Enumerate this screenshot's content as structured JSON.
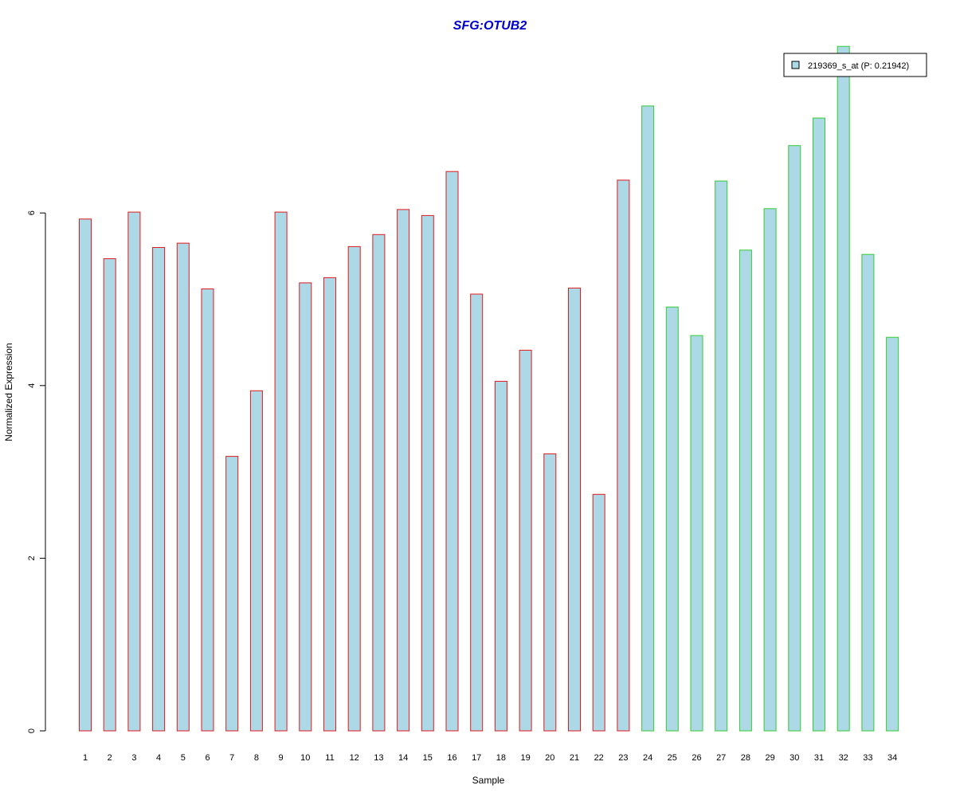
{
  "chart_data": {
    "type": "bar",
    "title": "SFG:OTUB2",
    "xlabel": "Sample",
    "ylabel": "Normalized Expression",
    "ylim": [
      0,
      8
    ],
    "yticks": [
      0,
      2,
      4,
      6
    ],
    "grid": false,
    "legend_position": "top-right",
    "categories": [
      "1",
      "2",
      "3",
      "4",
      "5",
      "6",
      "7",
      "8",
      "9",
      "10",
      "11",
      "12",
      "13",
      "14",
      "15",
      "16",
      "17",
      "18",
      "19",
      "20",
      "21",
      "22",
      "23",
      "24",
      "25",
      "26",
      "27",
      "28",
      "29",
      "30",
      "31",
      "32",
      "33",
      "34"
    ],
    "series": [
      {
        "name": "219369_s_at (P: 0.21942)",
        "values": [
          5.93,
          5.47,
          6.01,
          5.6,
          5.65,
          5.12,
          3.18,
          3.94,
          6.01,
          5.19,
          5.25,
          5.61,
          5.75,
          6.04,
          5.97,
          6.48,
          5.06,
          4.05,
          4.41,
          3.21,
          5.13,
          2.74,
          6.38,
          7.24,
          4.91,
          4.58,
          6.37,
          5.57,
          6.05,
          6.78,
          7.1,
          7.93,
          5.52,
          4.56
        ],
        "group": [
          "red",
          "red",
          "red",
          "red",
          "red",
          "red",
          "red",
          "red",
          "red",
          "red",
          "red",
          "red",
          "red",
          "red",
          "red",
          "red",
          "red",
          "red",
          "red",
          "red",
          "red",
          "red",
          "red",
          "green",
          "green",
          "green",
          "green",
          "green",
          "green",
          "green",
          "green",
          "green",
          "green",
          "green"
        ]
      }
    ],
    "colors": {
      "title": "#0000cc",
      "bar_fill": "#add8e6",
      "group_red": "#e31a1c",
      "group_green": "#33cc33",
      "axis": "#000000"
    }
  }
}
